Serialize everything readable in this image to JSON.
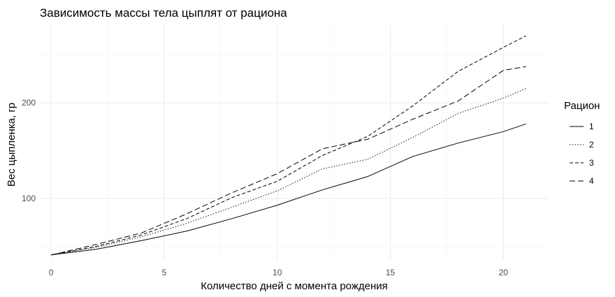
{
  "chart_data": {
    "type": "line",
    "title": "Зависимость массы тела цыплят от рациона",
    "xlabel": "Количество дней с момента рождения",
    "ylabel": "Вес цыпленка, гр",
    "xlim": [
      -0.5,
      22
    ],
    "ylim": [
      35,
      282
    ],
    "x_ticks": [
      0,
      5,
      10,
      15,
      20
    ],
    "y_ticks": [
      100,
      200
    ],
    "grid": true,
    "legend": {
      "title": "Рацион",
      "position": "right"
    },
    "x": [
      0,
      2,
      4,
      6,
      8,
      10,
      12,
      14,
      16,
      18,
      20,
      21
    ],
    "series": [
      {
        "name": "1",
        "line_style": "solid",
        "values": [
          41,
          47,
          56,
          66,
          79,
          93,
          109,
          123,
          144,
          158,
          170,
          178
        ]
      },
      {
        "name": "2",
        "line_style": "dotted",
        "values": [
          41,
          49,
          60,
          74,
          91,
          108,
          131,
          141,
          164,
          189,
          205,
          215
        ]
      },
      {
        "name": "3",
        "line_style": "dashed",
        "values": [
          41,
          50,
          62,
          79,
          101,
          118,
          145,
          165,
          197,
          233,
          258,
          270
        ]
      },
      {
        "name": "4",
        "line_style": "longdash",
        "values": [
          41,
          52,
          64,
          84,
          106,
          126,
          152,
          162,
          183,
          202,
          234,
          238
        ]
      }
    ]
  }
}
